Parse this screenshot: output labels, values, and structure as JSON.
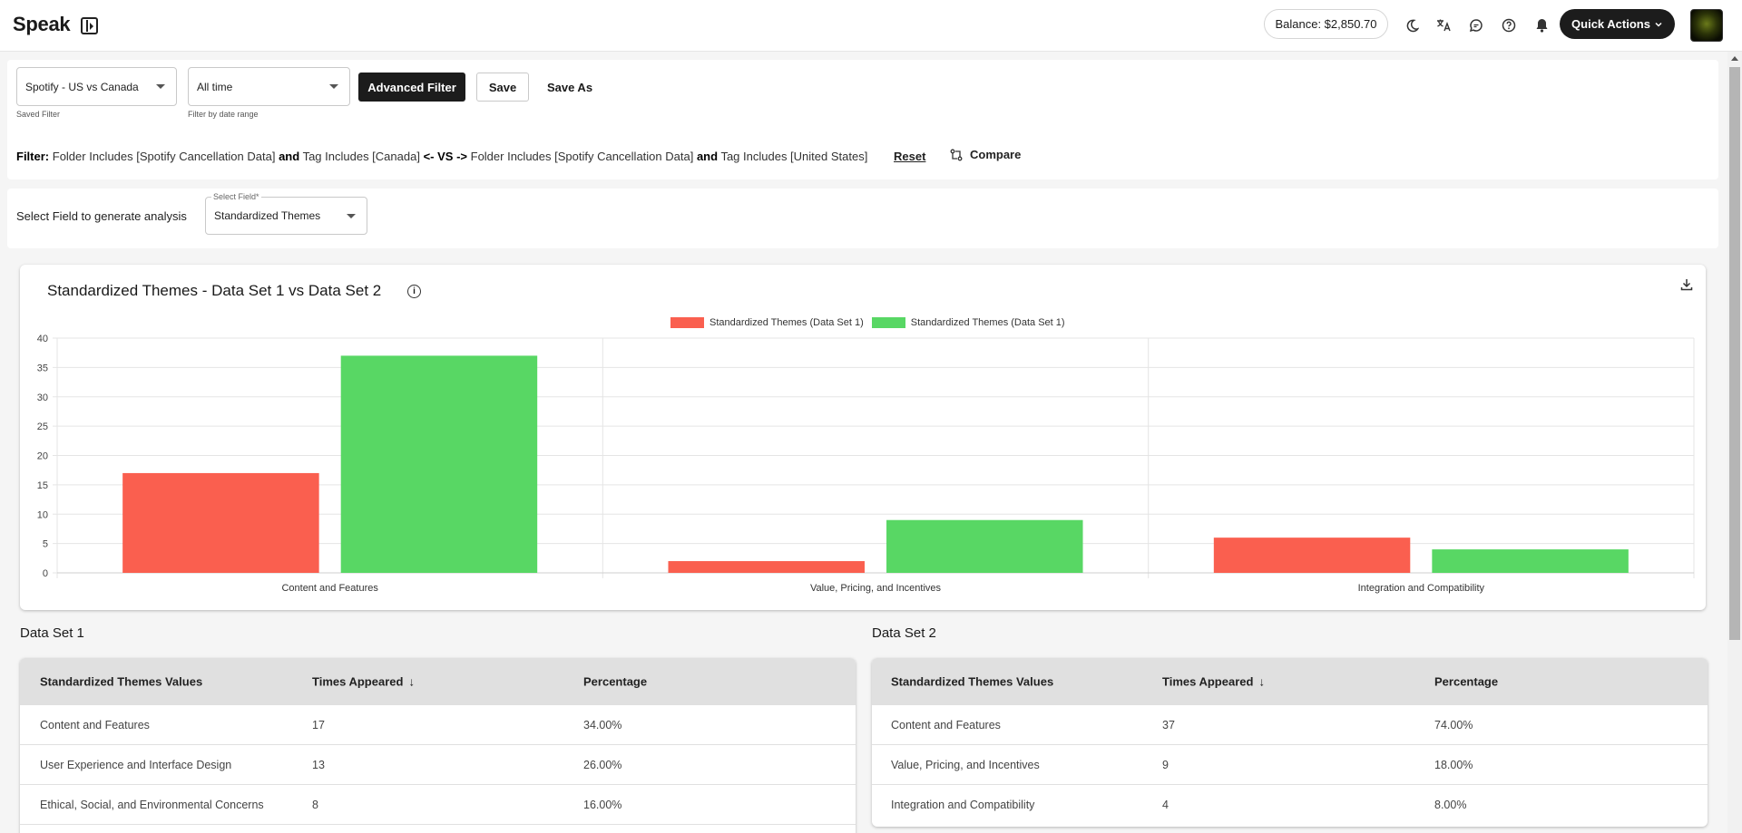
{
  "app": {
    "title": "Speak"
  },
  "header": {
    "balance": "Balance: $2,850.70",
    "quick_actions": "Quick Actions",
    "icons": [
      "moon-icon",
      "translate-icon",
      "chat-icon",
      "help-icon",
      "bell-icon"
    ]
  },
  "filters": {
    "saved_filter": {
      "value": "Spotify - US vs Canada",
      "helper": "Saved Filter"
    },
    "date_range": {
      "value": "All time",
      "helper": "Filter by date range"
    },
    "advanced_filter": "Advanced Filter",
    "save": "Save",
    "save_as": "Save As",
    "filter_label": "Filter:",
    "filter_parts": {
      "a1": "Folder Includes [Spotify Cancellation Data]",
      "and1": "and",
      "a2": "Tag Includes [Canada]",
      "vs": "<- VS ->",
      "b1": "Folder Includes [Spotify Cancellation Data]",
      "and2": "and",
      "b2": "Tag Includes [United States]"
    },
    "reset": "Reset",
    "compare": "Compare"
  },
  "field_select": {
    "prompt": "Select Field to generate analysis",
    "label": "Select Field*",
    "value": "Standardized Themes"
  },
  "chart": {
    "title": "Standardized Themes - Data Set 1 vs Data Set 2",
    "download_icon": "download-icon",
    "info_icon": "info-icon"
  },
  "chart_data": {
    "type": "bar",
    "categories": [
      "Content and Features",
      "Value, Pricing, and Incentives",
      "Integration and Compatibility"
    ],
    "series": [
      {
        "name": "Standardized Themes (Data Set 1)",
        "values": [
          17,
          2,
          6
        ],
        "color": "#fa5f4f"
      },
      {
        "name": "Standardized Themes (Data Set 1)",
        "values": [
          37,
          9,
          4
        ],
        "color": "#58d764"
      }
    ],
    "ylim": [
      0,
      40
    ],
    "yticks": [
      "0",
      "5",
      "10",
      "15",
      "20",
      "25",
      "30",
      "35",
      "40"
    ],
    "grid": true,
    "legend": "top-center"
  },
  "tables": [
    {
      "heading": "Data Set 1",
      "columns": [
        "Standardized Themes Values",
        "Times Appeared",
        "Percentage"
      ],
      "rows": [
        [
          "Content and Features",
          "17",
          "34.00%"
        ],
        [
          "User Experience and Interface Design",
          "13",
          "26.00%"
        ],
        [
          "Ethical, Social, and Environmental Concerns",
          "8",
          "16.00%"
        ]
      ]
    },
    {
      "heading": "Data Set 2",
      "columns": [
        "Standardized Themes Values",
        "Times Appeared",
        "Percentage"
      ],
      "rows": [
        [
          "Content and Features",
          "37",
          "74.00%"
        ],
        [
          "Value, Pricing, and Incentives",
          "9",
          "18.00%"
        ],
        [
          "Integration and Compatibility",
          "4",
          "8.00%"
        ]
      ]
    }
  ]
}
